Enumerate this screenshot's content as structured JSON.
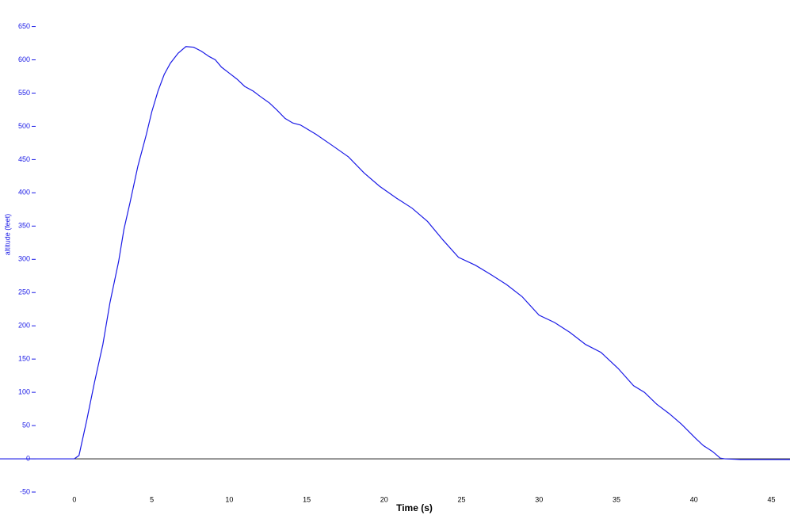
{
  "chart_data": {
    "type": "line",
    "xlabel": "Time (s)",
    "ylabel": "altitude (feet)",
    "x": [
      -4.8,
      0,
      0.3,
      0.8,
      1.3,
      1.84,
      2.3,
      2.86,
      3.2,
      3.6,
      4.1,
      4.65,
      5,
      5.4,
      5.8,
      6.2,
      6.7,
      7.2,
      7.7,
      8.2,
      8.7,
      9.1,
      9.5,
      10,
      10.5,
      11,
      11.55,
      12,
      12.6,
      13.1,
      13.6,
      14.1,
      14.6,
      15.6,
      16.6,
      17.7,
      18.7,
      19.7,
      20.8,
      21.8,
      22.8,
      23.8,
      24.8,
      25.9,
      26.9,
      27.9,
      28.9,
      30,
      31,
      32,
      33,
      34,
      35.1,
      36.1,
      36.8,
      37.6,
      38.4,
      39.2,
      40.1,
      40.6,
      41.2,
      41.7,
      42,
      43,
      44,
      46.2
    ],
    "series": [
      {
        "name": "altitude",
        "color": "#1a1ae6",
        "values": [
          0,
          0,
          5,
          58,
          115,
          172,
          235,
          297,
          345,
          386,
          440,
          488,
          522,
          553,
          578,
          595,
          610,
          620,
          619,
          613,
          605,
          600,
          589,
          580,
          571,
          560,
          553,
          545,
          535,
          524,
          512,
          505,
          502,
          488,
          472,
          454,
          430,
          410,
          392,
          377,
          357,
          329,
          303,
          291,
          277,
          262,
          244,
          216,
          205,
          190,
          172,
          160,
          136,
          110,
          100,
          82,
          68,
          52,
          31,
          20,
          11,
          1,
          0,
          -1,
          -1,
          -1
        ]
      }
    ],
    "xlim": [
      -4.8,
      46.2
    ],
    "ylim": [
      -50,
      690
    ],
    "xticks": [
      0,
      5,
      10,
      15,
      20,
      25,
      30,
      35,
      40,
      45
    ],
    "yticks": [
      -50,
      0,
      50,
      100,
      150,
      200,
      250,
      300,
      350,
      400,
      450,
      500,
      550,
      600,
      650
    ],
    "zero_line": true
  }
}
